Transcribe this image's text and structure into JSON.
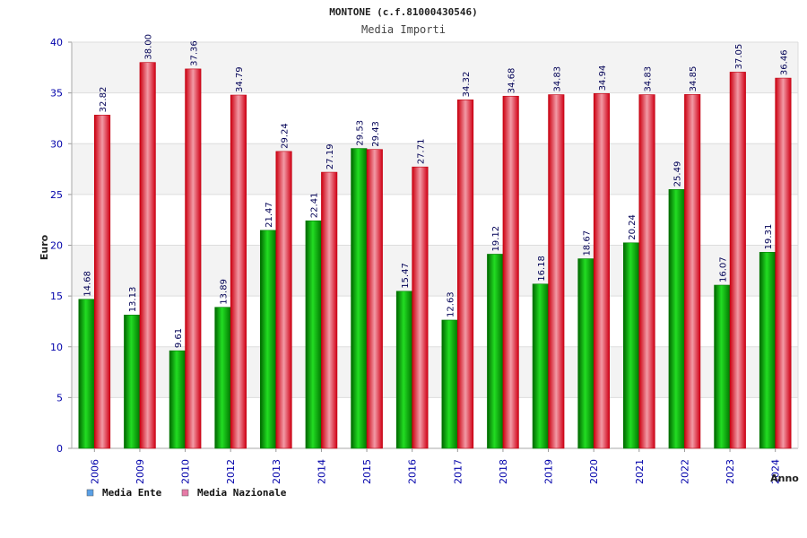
{
  "chart_data": {
    "type": "bar",
    "title": "MONTONE (c.f.81000430546)",
    "subtitle": "Media Importi",
    "xlabel": "Anno",
    "ylabel": "Euro",
    "ylim": [
      0,
      40
    ],
    "yticks": [
      0,
      5,
      10,
      15,
      20,
      25,
      30,
      35,
      40
    ],
    "grid": true,
    "legend_position": "bottom-left",
    "categories": [
      "2006",
      "2009",
      "2010",
      "2012",
      "2013",
      "2014",
      "2015",
      "2016",
      "2017",
      "2018",
      "2019",
      "2020",
      "2021",
      "2022",
      "2023",
      "2024"
    ],
    "series": [
      {
        "name": "Media Ente",
        "color": "#00aa00",
        "legend_color": "#5aa0e6",
        "values": [
          14.68,
          13.13,
          9.61,
          13.89,
          21.47,
          22.41,
          29.53,
          15.47,
          12.63,
          19.12,
          16.18,
          18.67,
          20.24,
          25.49,
          16.07,
          19.31
        ]
      },
      {
        "name": "Media Nazionale",
        "color": "#e8001a",
        "legend_color": "#e67aa6",
        "values": [
          32.82,
          38.0,
          37.36,
          34.79,
          29.24,
          27.19,
          29.43,
          27.71,
          34.32,
          34.68,
          34.83,
          34.94,
          34.83,
          34.85,
          37.05,
          36.46
        ]
      }
    ]
  }
}
